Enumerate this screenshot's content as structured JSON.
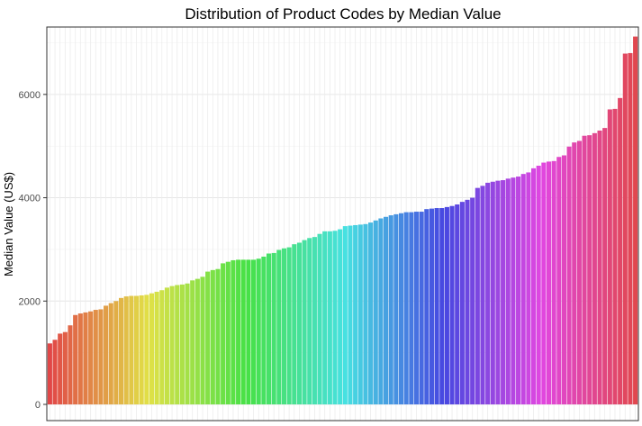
{
  "chart_data": {
    "type": "bar",
    "title": "Distribution of Product Codes by Median Value",
    "xlabel": "",
    "ylabel": "Median Value (US$)",
    "ylim": [
      0,
      7200
    ],
    "y_ticks": [
      0,
      2000,
      4000,
      6000
    ],
    "y_tick_labels": [
      "0",
      "2000",
      "4000",
      "6000"
    ],
    "grid": true,
    "legend": "none",
    "sorted": "ascending",
    "color_scale": "hue gradient across bars (red → orange → green → cyan → blue → purple → pink → red)",
    "values": [
      1180,
      1250,
      1370,
      1400,
      1530,
      1730,
      1760,
      1780,
      1800,
      1830,
      1840,
      1910,
      1960,
      2000,
      2060,
      2090,
      2100,
      2100,
      2110,
      2120,
      2150,
      2180,
      2210,
      2260,
      2290,
      2310,
      2320,
      2340,
      2400,
      2430,
      2470,
      2570,
      2600,
      2620,
      2730,
      2760,
      2790,
      2800,
      2800,
      2800,
      2800,
      2820,
      2860,
      2920,
      2930,
      2990,
      3020,
      3040,
      3100,
      3130,
      3180,
      3220,
      3240,
      3300,
      3350,
      3350,
      3360,
      3390,
      3450,
      3460,
      3470,
      3480,
      3490,
      3520,
      3560,
      3600,
      3630,
      3660,
      3680,
      3700,
      3720,
      3720,
      3730,
      3730,
      3780,
      3790,
      3800,
      3800,
      3820,
      3840,
      3870,
      3920,
      3960,
      4000,
      4190,
      4230,
      4290,
      4310,
      4330,
      4340,
      4370,
      4390,
      4410,
      4460,
      4490,
      4570,
      4620,
      4680,
      4700,
      4710,
      4790,
      4820,
      4990,
      5070,
      5100,
      5200,
      5210,
      5250,
      5300,
      5350,
      5710,
      5720,
      5930,
      6790,
      6800,
      7120
    ]
  }
}
